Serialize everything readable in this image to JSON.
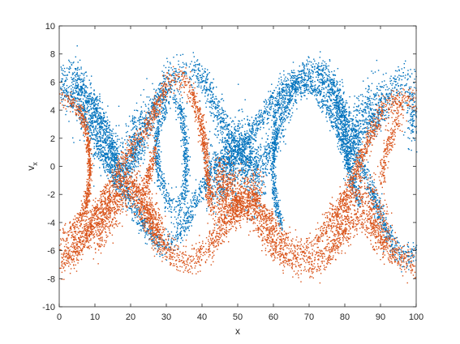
{
  "chart_data": {
    "type": "scatter",
    "title": "",
    "xlabel": "x",
    "ylabel": {
      "main": "v",
      "subscript": "x"
    },
    "xlim": [
      0,
      100
    ],
    "ylim": [
      -10,
      10
    ],
    "xticks": [
      0,
      10,
      20,
      30,
      40,
      50,
      60,
      70,
      80,
      90,
      100
    ],
    "yticks": [
      -10,
      -8,
      -6,
      -4,
      -2,
      0,
      2,
      4,
      6,
      8,
      10
    ],
    "grid": false,
    "legend": "none",
    "colors": {
      "blue": "#0072BD",
      "orange": "#D95319",
      "axis": "#262626"
    },
    "marker_size": 1,
    "series": [
      {
        "color": "blue",
        "curves": [
          {
            "points": [
              [
                0,
                5.6
              ],
              [
                3,
                5.0
              ],
              [
                6,
                4.0
              ],
              [
                9,
                2.6
              ],
              [
                12,
                1.0
              ],
              [
                15,
                -0.5
              ],
              [
                18,
                -1.8
              ],
              [
                21,
                -3.0
              ],
              [
                24,
                -4.2
              ],
              [
                26,
                -5.0
              ],
              [
                28,
                -5.4
              ],
              [
                30,
                -5.6
              ],
              [
                32,
                -5.3
              ],
              [
                34,
                -4.6
              ],
              [
                36,
                -3.6
              ],
              [
                38,
                -2.5
              ],
              [
                40,
                -1.5
              ],
              [
                42,
                -0.6
              ],
              [
                45,
                0.2
              ],
              [
                48,
                0.8
              ],
              [
                51,
                1.4
              ],
              [
                54,
                2.6
              ],
              [
                57,
                3.8
              ],
              [
                60,
                5.0
              ],
              [
                63,
                5.8
              ],
              [
                66,
                6.3
              ],
              [
                69,
                6.6
              ],
              [
                72,
                6.6
              ],
              [
                74,
                6.2
              ],
              [
                76,
                5.4
              ],
              [
                78,
                4.0
              ],
              [
                80,
                2.6
              ],
              [
                82,
                1.2
              ],
              [
                84,
                0.4
              ],
              [
                86,
                -0.8
              ],
              [
                88,
                -2.2
              ],
              [
                90,
                -3.6
              ],
              [
                92,
                -4.8
              ],
              [
                94,
                -5.8
              ],
              [
                96,
                -6.3
              ],
              [
                98,
                -6.4
              ],
              [
                100,
                -6.0
              ]
            ],
            "noise": 0.45,
            "n": 2300
          },
          {
            "points": [
              [
                0,
                6.6
              ],
              [
                4,
                6.4
              ],
              [
                8,
                5.0
              ],
              [
                12,
                3.2
              ],
              [
                15,
                1.0
              ],
              [
                18,
                -0.6
              ],
              [
                21,
                0.8
              ],
              [
                24,
                2.6
              ],
              [
                27,
                4.6
              ],
              [
                30,
                6.0
              ],
              [
                33,
                6.7
              ],
              [
                36,
                6.9
              ],
              [
                39,
                6.6
              ],
              [
                42,
                5.4
              ],
              [
                45,
                3.6
              ],
              [
                48,
                2.0
              ],
              [
                51,
                0.8
              ],
              [
                54,
                0.0
              ],
              [
                57,
                0.4
              ],
              [
                60,
                1.8
              ],
              [
                63,
                3.8
              ],
              [
                66,
                5.6
              ],
              [
                69,
                6.7
              ],
              [
                72,
                6.9
              ],
              [
                75,
                6.4
              ],
              [
                78,
                5.0
              ],
              [
                81,
                3.0
              ],
              [
                84,
                2.2
              ],
              [
                87,
                2.8
              ],
              [
                90,
                4.0
              ],
              [
                93,
                5.4
              ],
              [
                96,
                6.3
              ],
              [
                100,
                6.3
              ]
            ],
            "noise": 0.6,
            "n": 2600
          },
          {
            "points": [
              [
                27,
                1.0
              ],
              [
                28,
                3.2
              ],
              [
                30,
                4.8
              ],
              [
                32,
                5.0
              ],
              [
                34,
                4.2
              ],
              [
                35,
                2.4
              ],
              [
                35.5,
                0.0
              ],
              [
                35,
                -2.0
              ],
              [
                33,
                -3.2
              ],
              [
                31,
                -2.8
              ],
              [
                29,
                -1.4
              ],
              [
                27.5,
                0.0
              ],
              [
                27,
                1.0
              ]
            ],
            "noise": 0.5,
            "n": 700
          },
          {
            "points": [
              [
                60,
                3.4
              ],
              [
                62,
                4.8
              ],
              [
                65,
                5.6
              ],
              [
                69,
                5.9
              ],
              [
                72,
                5.4
              ],
              [
                75,
                4.2
              ],
              [
                78,
                2.6
              ],
              [
                80,
                1.2
              ],
              [
                81,
                0.0
              ],
              [
                82.5,
                -1.4
              ],
              [
                84,
                -2.6
              ]
            ],
            "noise": 0.45,
            "n": 700
          },
          {
            "points": [
              [
                61,
                2.8
              ],
              [
                60,
                1.2
              ],
              [
                59.5,
                0.0
              ],
              [
                60,
                -1.6
              ],
              [
                61,
                -3.0
              ],
              [
                62,
                -4.2
              ]
            ],
            "noise": 0.4,
            "n": 300
          },
          {
            "points": [
              [
                42,
                -1.0
              ],
              [
                46,
                0.0
              ],
              [
                50,
                1.5
              ],
              [
                54,
                0.0
              ],
              [
                56,
                -1.0
              ]
            ],
            "noise": 1.4,
            "n": 900
          },
          {
            "points": [
              [
                3,
                5.6
              ],
              [
                8,
                4.0
              ],
              [
                12,
                1.8
              ],
              [
                16,
                0.4
              ],
              [
                20,
                1.4
              ],
              [
                23,
                3.0
              ]
            ],
            "noise": 1.2,
            "n": 700
          },
          {
            "points": [
              [
                80,
                1.0
              ],
              [
                84,
                3.0
              ],
              [
                88,
                4.5
              ],
              [
                91,
                5.0
              ]
            ],
            "noise": 1.0,
            "n": 400
          },
          {
            "points": [
              [
                98,
                4.6
              ],
              [
                99.5,
                3.0
              ]
            ],
            "noise": 1.0,
            "n": 120
          }
        ]
      },
      {
        "color": "orange",
        "curves": [
          {
            "points": [
              [
                0,
                -6.6
              ],
              [
                3,
                -6.0
              ],
              [
                6,
                -5.0
              ],
              [
                9,
                -3.6
              ],
              [
                12,
                -2.2
              ],
              [
                15,
                -0.8
              ],
              [
                18,
                0.6
              ],
              [
                21,
                1.6
              ],
              [
                24,
                2.6
              ],
              [
                26,
                3.6
              ],
              [
                28,
                4.8
              ],
              [
                30,
                5.8
              ],
              [
                32,
                6.3
              ],
              [
                34,
                6.3
              ],
              [
                36,
                5.8
              ],
              [
                38,
                4.5
              ],
              [
                40,
                2.6
              ],
              [
                41,
                0.6
              ],
              [
                41.5,
                -1.2
              ],
              [
                42,
                -2.6
              ],
              [
                45,
                -3.4
              ],
              [
                48,
                -3.2
              ],
              [
                51,
                -2.4
              ],
              [
                54,
                -2.0
              ],
              [
                57,
                -3.0
              ],
              [
                60,
                -4.2
              ],
              [
                63,
                -5.2
              ],
              [
                66,
                -5.8
              ],
              [
                69,
                -6.0
              ],
              [
                72,
                -5.4
              ],
              [
                74,
                -4.4
              ],
              [
                76,
                -3.6
              ],
              [
                78,
                -3.0
              ],
              [
                80,
                -2.2
              ],
              [
                82,
                -1.0
              ],
              [
                84,
                0.4
              ],
              [
                86,
                1.6
              ],
              [
                88,
                2.8
              ],
              [
                90,
                3.8
              ],
              [
                93,
                4.6
              ],
              [
                96,
                4.9
              ],
              [
                98,
                4.9
              ],
              [
                100,
                4.6
              ]
            ],
            "noise": 0.45,
            "n": 2300
          },
          {
            "points": [
              [
                0,
                -6.8
              ],
              [
                3,
                -6.4
              ],
              [
                6,
                -5.6
              ],
              [
                9,
                -4.4
              ],
              [
                12,
                -3.4
              ],
              [
                15,
                -2.2
              ],
              [
                18,
                -1.0
              ],
              [
                21,
                -1.6
              ],
              [
                24,
                -3.0
              ],
              [
                27,
                -4.6
              ],
              [
                30,
                -5.8
              ],
              [
                33,
                -6.6
              ],
              [
                36,
                -6.8
              ],
              [
                39,
                -6.4
              ],
              [
                42,
                -5.6
              ],
              [
                45,
                -4.6
              ],
              [
                48,
                -3.6
              ],
              [
                51,
                -2.6
              ],
              [
                54,
                -3.0
              ],
              [
                57,
                -4.4
              ],
              [
                60,
                -5.6
              ],
              [
                63,
                -6.4
              ],
              [
                66,
                -6.8
              ],
              [
                69,
                -7.0
              ],
              [
                72,
                -6.8
              ],
              [
                75,
                -6.2
              ],
              [
                78,
                -5.2
              ],
              [
                81,
                -4.2
              ],
              [
                84,
                -3.6
              ],
              [
                87,
                -4.0
              ],
              [
                90,
                -5.2
              ],
              [
                93,
                -6.0
              ],
              [
                96,
                -6.6
              ],
              [
                100,
                -6.8
              ]
            ],
            "noise": 0.55,
            "n": 2500
          },
          {
            "points": [
              [
                0,
                4.8
              ],
              [
                3,
                4.8
              ],
              [
                5,
                4.2
              ],
              [
                7,
                3.0
              ],
              [
                8,
                1.8
              ],
              [
                8.5,
                0.0
              ],
              [
                8,
                -1.8
              ],
              [
                7,
                -3.0
              ],
              [
                5,
                -4.0
              ],
              [
                3,
                -4.6
              ],
              [
                0,
                -5.0
              ]
            ],
            "noise": 0.35,
            "n": 600
          },
          {
            "points": [
              [
                24,
                -1.6
              ],
              [
                25.5,
                0.0
              ],
              [
                27,
                1.4
              ]
            ],
            "noise": 0.4,
            "n": 150
          },
          {
            "points": [
              [
                44,
                -1.0
              ],
              [
                50,
                -2.6
              ],
              [
                56,
                -2.0
              ]
            ],
            "noise": 1.0,
            "n": 600
          },
          {
            "points": [
              [
                10,
                -5.0
              ],
              [
                15,
                -3.0
              ],
              [
                20,
                -1.4
              ],
              [
                24,
                -2.6
              ],
              [
                28,
                -4.8
              ]
            ],
            "noise": 0.9,
            "n": 600
          },
          {
            "points": [
              [
                76,
                -4.2
              ],
              [
                80,
                -3.0
              ],
              [
                84,
                -1.6
              ],
              [
                87,
                -2.6
              ],
              [
                92,
                -4.8
              ]
            ],
            "noise": 0.9,
            "n": 450
          },
          {
            "points": [
              [
                90,
                -1.0
              ],
              [
                92,
                1.6
              ],
              [
                94,
                3.0
              ],
              [
                96,
                4.0
              ]
            ],
            "noise": 0.6,
            "n": 200
          }
        ]
      }
    ]
  }
}
